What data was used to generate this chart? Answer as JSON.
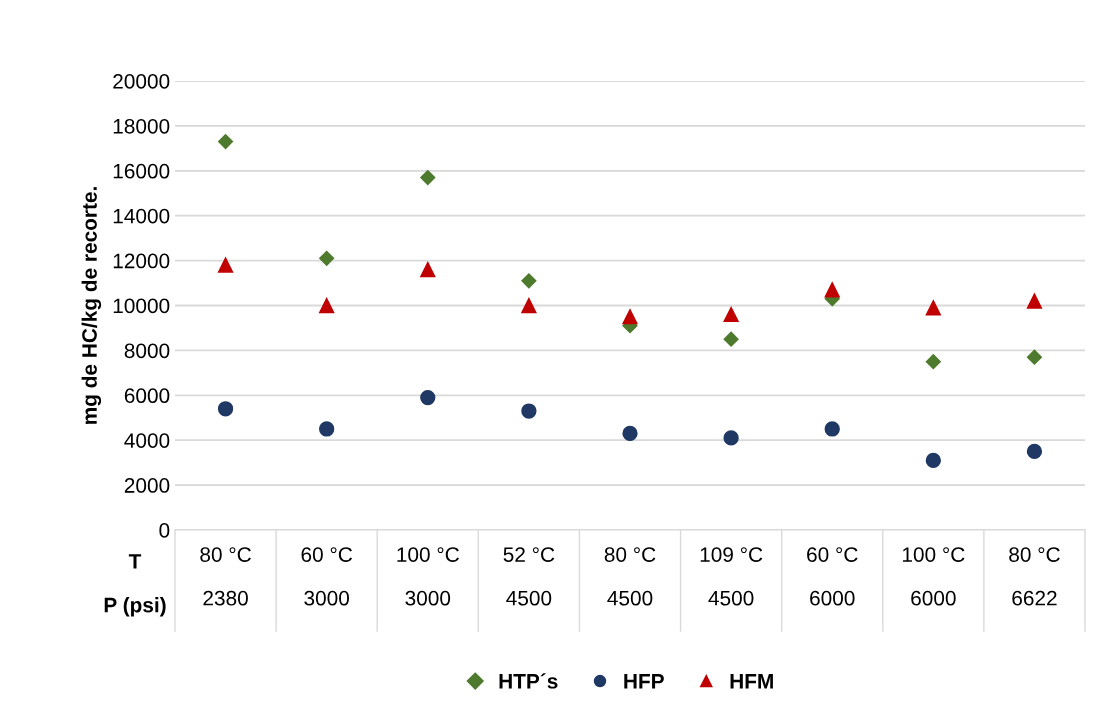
{
  "chart_data": {
    "type": "scatter",
    "ylabel": "mg de HC/kg de recorte.",
    "categories": [
      "80 °C\n2380",
      "60 °C\n3000",
      "100 °C\n3000",
      "52 °C\n4500",
      "80 °C\n4500",
      "109 °C\n4500",
      "60 °C\n6000",
      "100 °C\n6000",
      "80 °C\n6622"
    ],
    "annotations": [
      "T\nP (psi)"
    ],
    "series": [
      {
        "name": "HTP´s",
        "color": "#4e7a2e",
        "marker": "diamond",
        "values": [
          17300,
          12100,
          15700,
          11100,
          9100,
          8500,
          10300,
          7500,
          7700
        ]
      },
      {
        "name": "HFP",
        "color": "#1f3864",
        "marker": "circle",
        "values": [
          5400,
          4500,
          5900,
          5300,
          4300,
          4100,
          4500,
          3100,
          3500
        ]
      },
      {
        "name": "HFM",
        "color": "#c00000",
        "marker": "triangle",
        "values": [
          11800,
          10000,
          11600,
          10000,
          9500,
          9600,
          10700,
          9900,
          10200
        ]
      }
    ],
    "ylim": [
      0,
      20000
    ],
    "yticks": [
      0,
      2000,
      4000,
      6000,
      8000,
      10000,
      12000,
      14000,
      16000,
      18000,
      20000
    ],
    "grid": "y",
    "legend": "bottom"
  }
}
